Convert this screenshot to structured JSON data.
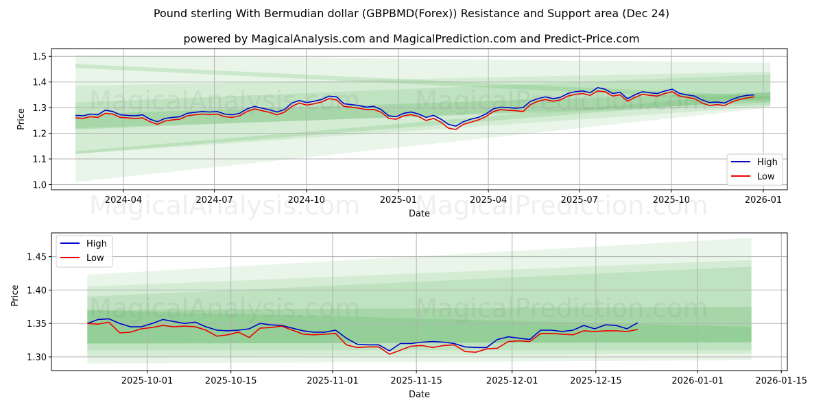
{
  "title": "Pound sterling With Bermudian dollar (GBPBMD(Forex)) Resistance and Support area (Dec 24)",
  "subtitle": "powered by MagicalAnalysis.com and MagicalPrediction.com and Predict-Price.com",
  "watermarks": [
    "MagicalAnalysis.com",
    "MagicalPrediction.com"
  ],
  "colors": {
    "high": "#0000cc",
    "low": "#ee0000",
    "band": "#4caf50"
  },
  "chart_data": [
    {
      "type": "line",
      "xlabel": "Date",
      "ylabel": "Price",
      "ylim": [
        0.98,
        1.53
      ],
      "xlim": [
        "2024-01-20",
        "2026-01-25"
      ],
      "yticks": [
        "1.0",
        "1.1",
        "1.2",
        "1.3",
        "1.4",
        "1.5"
      ],
      "ytick_values": [
        1.0,
        1.1,
        1.2,
        1.3,
        1.4,
        1.5
      ],
      "xticks": [
        "2024-04",
        "2024-07",
        "2024-10",
        "2025-01",
        "2025-04",
        "2025-07",
        "2025-10",
        "2026-01"
      ],
      "xtick_dates": [
        "2024-04-01",
        "2024-07-01",
        "2024-10-01",
        "2025-01-01",
        "2025-04-01",
        "2025-07-01",
        "2025-10-01",
        "2026-01-01"
      ],
      "legend": [
        "High",
        "Low"
      ],
      "legend_placement": "lower-right",
      "grid": true,
      "start": "2024-02-13",
      "end": "2025-12-23",
      "band_end": "2026-01-08",
      "high": [
        1.27,
        1.268,
        1.275,
        1.272,
        1.29,
        1.285,
        1.272,
        1.27,
        1.268,
        1.272,
        1.255,
        1.245,
        1.258,
        1.262,
        1.265,
        1.278,
        1.282,
        1.285,
        1.283,
        1.285,
        1.275,
        1.272,
        1.278,
        1.295,
        1.305,
        1.298,
        1.292,
        1.283,
        1.292,
        1.318,
        1.328,
        1.32,
        1.325,
        1.332,
        1.345,
        1.342,
        1.315,
        1.312,
        1.308,
        1.302,
        1.305,
        1.292,
        1.268,
        1.265,
        1.278,
        1.283,
        1.275,
        1.262,
        1.27,
        1.255,
        1.235,
        1.228,
        1.245,
        1.255,
        1.262,
        1.275,
        1.295,
        1.302,
        1.3,
        1.298,
        1.3,
        1.325,
        1.335,
        1.342,
        1.335,
        1.34,
        1.355,
        1.362,
        1.365,
        1.358,
        1.378,
        1.372,
        1.355,
        1.36,
        1.335,
        1.35,
        1.362,
        1.358,
        1.355,
        1.365,
        1.372,
        1.355,
        1.35,
        1.345,
        1.33,
        1.32,
        1.322,
        1.318,
        1.332,
        1.342,
        1.348,
        1.35
      ],
      "low": [
        1.26,
        1.258,
        1.265,
        1.262,
        1.278,
        1.275,
        1.262,
        1.26,
        1.258,
        1.26,
        1.245,
        1.235,
        1.248,
        1.252,
        1.255,
        1.268,
        1.272,
        1.275,
        1.273,
        1.275,
        1.265,
        1.262,
        1.268,
        1.285,
        1.295,
        1.288,
        1.282,
        1.272,
        1.282,
        1.305,
        1.318,
        1.31,
        1.315,
        1.322,
        1.335,
        1.33,
        1.305,
        1.302,
        1.298,
        1.292,
        1.293,
        1.282,
        1.258,
        1.255,
        1.268,
        1.273,
        1.265,
        1.25,
        1.258,
        1.243,
        1.22,
        1.215,
        1.235,
        1.243,
        1.252,
        1.265,
        1.285,
        1.292,
        1.29,
        1.288,
        1.285,
        1.312,
        1.325,
        1.332,
        1.325,
        1.33,
        1.345,
        1.352,
        1.355,
        1.348,
        1.365,
        1.362,
        1.345,
        1.35,
        1.325,
        1.34,
        1.352,
        1.348,
        1.345,
        1.355,
        1.362,
        1.345,
        1.34,
        1.335,
        1.318,
        1.308,
        1.312,
        1.308,
        1.322,
        1.332,
        1.338,
        1.342
      ],
      "bands": [
        {
          "start": [
            1.01,
            1.505
          ],
          "end": [
            1.3,
            1.475
          ],
          "alpha": 0.13
        },
        {
          "start": [
            1.12,
            1.385
          ],
          "end": [
            1.305,
            1.44
          ],
          "alpha": 0.13
        },
        {
          "start": [
            1.22,
            1.32
          ],
          "end": [
            1.31,
            1.43
          ],
          "alpha": 0.15
        },
        {
          "start": [
            1.215,
            1.275
          ],
          "end": [
            1.32,
            1.36
          ],
          "alpha": 0.2
        },
        {
          "start": [
            1.455,
            1.47
          ],
          "end": [
            1.325,
            1.345
          ],
          "alpha": 0.18
        },
        {
          "start": [
            1.12,
            1.13
          ],
          "end": [
            1.335,
            1.36
          ],
          "alpha": 0.18
        }
      ]
    },
    {
      "type": "line",
      "xlabel": "Date",
      "ylabel": "Price",
      "ylim": [
        1.2795,
        1.4855
      ],
      "xlim": [
        "2025-09-15",
        "2026-01-16"
      ],
      "yticks": [
        "1.30",
        "1.35",
        "1.40",
        "1.45"
      ],
      "ytick_values": [
        1.3,
        1.35,
        1.4,
        1.45
      ],
      "xticks": [
        "2025-10-01",
        "2025-10-15",
        "2025-11-01",
        "2025-11-15",
        "2025-12-01",
        "2025-12-15",
        "2026-01-01",
        "2026-01-15"
      ],
      "xtick_dates": [
        "2025-10-01",
        "2025-10-15",
        "2025-11-01",
        "2025-11-15",
        "2025-12-01",
        "2025-12-15",
        "2026-01-01",
        "2026-01-15"
      ],
      "legend": [
        "High",
        "Low"
      ],
      "legend_placement": "upper-left",
      "grid": true,
      "start": "2025-09-21",
      "end": "2025-12-22",
      "band_end": "2026-01-10",
      "high": [
        1.35,
        1.356,
        1.357,
        1.35,
        1.345,
        1.345,
        1.35,
        1.356,
        1.353,
        1.35,
        1.352,
        1.345,
        1.34,
        1.339,
        1.34,
        1.342,
        1.35,
        1.348,
        1.347,
        1.343,
        1.339,
        1.337,
        1.337,
        1.34,
        1.328,
        1.319,
        1.318,
        1.318,
        1.309,
        1.32,
        1.32,
        1.322,
        1.323,
        1.322,
        1.32,
        1.315,
        1.314,
        1.314,
        1.326,
        1.33,
        1.328,
        1.326,
        1.34,
        1.34,
        1.338,
        1.34,
        1.347,
        1.342,
        1.348,
        1.347,
        1.342,
        1.351
      ],
      "low": [
        1.35,
        1.349,
        1.352,
        1.336,
        1.337,
        1.342,
        1.344,
        1.347,
        1.345,
        1.346,
        1.345,
        1.34,
        1.331,
        1.333,
        1.337,
        1.329,
        1.343,
        1.344,
        1.346,
        1.34,
        1.334,
        1.333,
        1.334,
        1.335,
        1.318,
        1.314,
        1.315,
        1.315,
        1.304,
        1.31,
        1.316,
        1.317,
        1.314,
        1.317,
        1.318,
        1.308,
        1.307,
        1.312,
        1.313,
        1.323,
        1.324,
        1.323,
        1.335,
        1.335,
        1.334,
        1.333,
        1.339,
        1.338,
        1.339,
        1.339,
        1.338,
        1.341
      ],
      "bands": [
        {
          "start": [
            1.29,
            1.423
          ],
          "end": [
            1.295,
            1.478
          ],
          "alpha": 0.13
        },
        {
          "start": [
            1.3,
            1.405
          ],
          "end": [
            1.305,
            1.445
          ],
          "alpha": 0.13
        },
        {
          "start": [
            1.31,
            1.39
          ],
          "end": [
            1.31,
            1.435
          ],
          "alpha": 0.15
        },
        {
          "start": [
            1.32,
            1.37
          ],
          "end": [
            1.322,
            1.375
          ],
          "alpha": 0.2
        },
        {
          "start": [
            1.32,
            1.37
          ],
          "end": [
            1.322,
            1.345
          ],
          "alpha": 0.2
        }
      ]
    }
  ]
}
